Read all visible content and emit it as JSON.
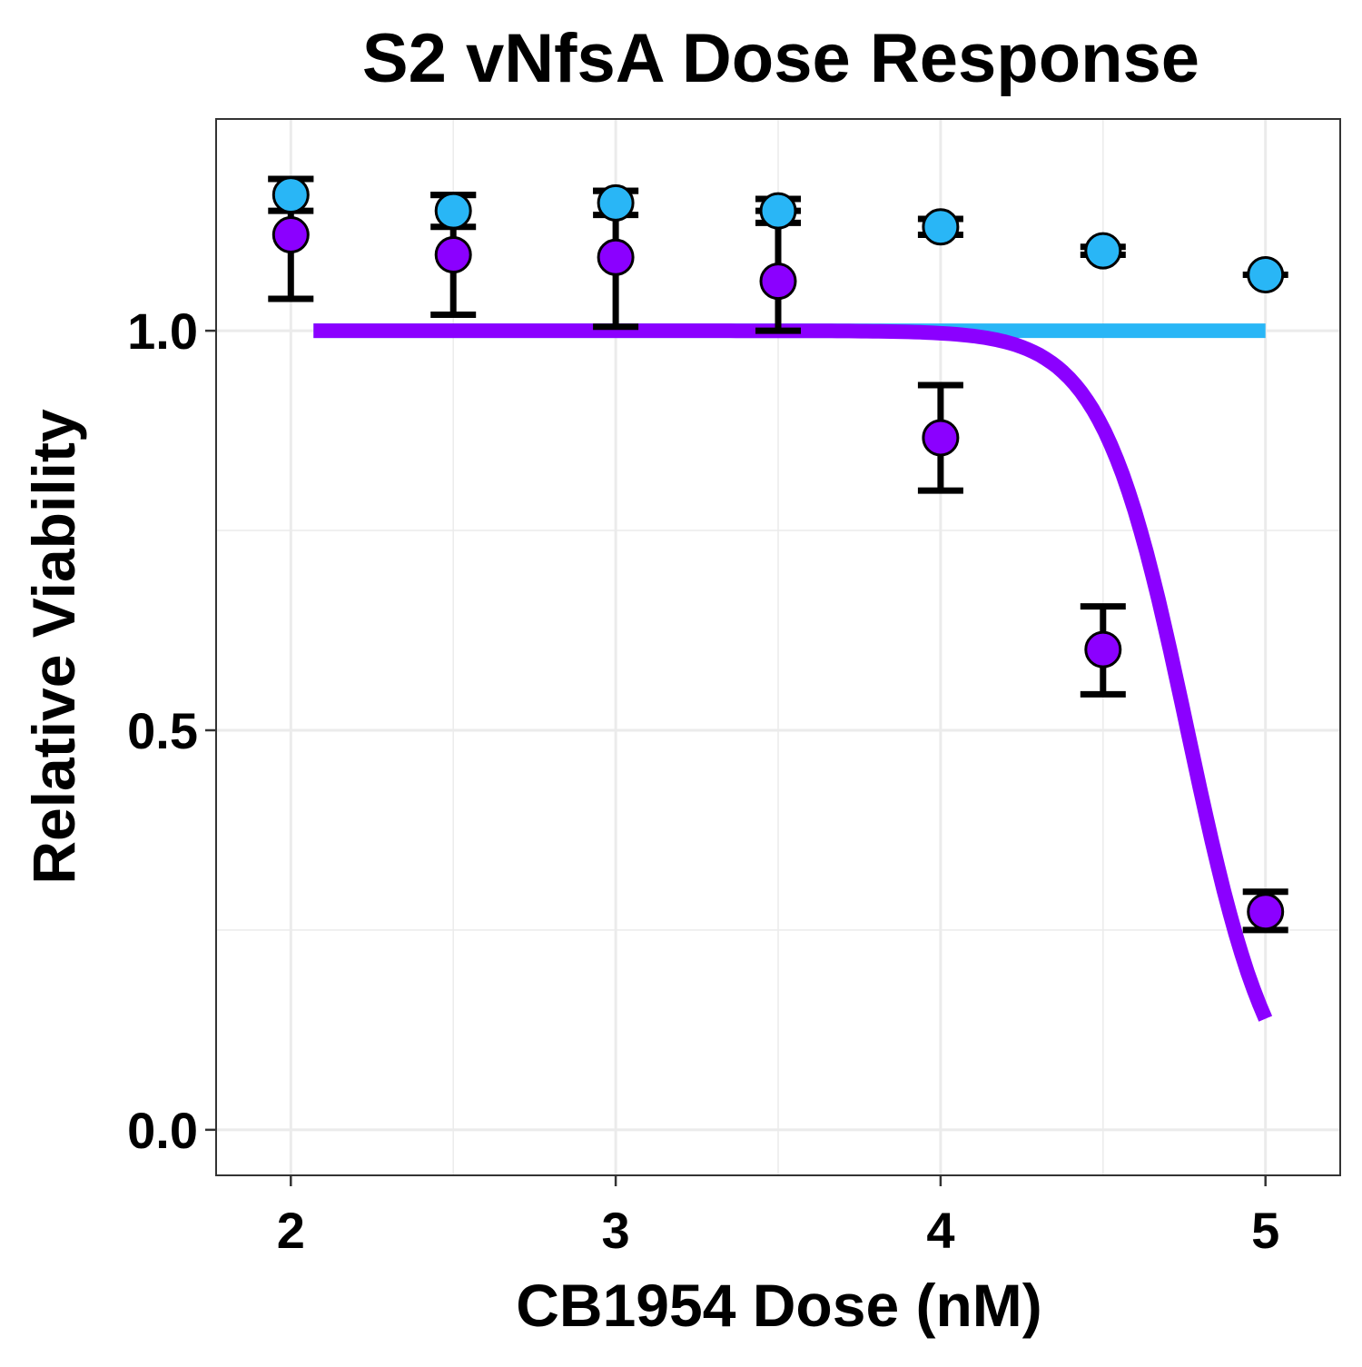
{
  "chart_data": {
    "type": "scatter",
    "title": "S2 vNfsA Dose Response",
    "xlabel": "CB1954 Dose (nM)",
    "ylabel": "Relative Viability",
    "xlim": [
      1.77,
      5.23
    ],
    "ylim": [
      -0.057,
      1.265
    ],
    "x_ticks": [
      2,
      3,
      4,
      5
    ],
    "x_tick_labels": [
      "2",
      "3",
      "4",
      "5"
    ],
    "x_minor_ticks": [
      2.5,
      3.5,
      4.5
    ],
    "y_ticks": [
      0.0,
      0.5,
      1.0
    ],
    "y_tick_labels": [
      "0.0",
      "0.5",
      "1.0"
    ],
    "y_minor_ticks": [
      0.25,
      0.75
    ],
    "grid": true,
    "legend": "none",
    "series": [
      {
        "color": "#29B6F6",
        "x": [
          2.0,
          2.5,
          3.0,
          3.5,
          4.0,
          4.5,
          5.0
        ],
        "y": [
          1.17,
          1.15,
          1.16,
          1.15,
          1.13,
          1.1,
          1.07
        ],
        "err_low": [
          1.15,
          1.13,
          1.145,
          1.135,
          1.12,
          1.095,
          1.07
        ],
        "err_high": [
          1.19,
          1.17,
          1.175,
          1.165,
          1.14,
          1.105,
          1.07
        ],
        "fit": {
          "model": "constant",
          "value": 1.0,
          "x_range": [
            2.07,
            5.0
          ]
        }
      },
      {
        "color": "#8B00FF",
        "x": [
          2.0,
          2.5,
          3.0,
          3.5,
          4.0,
          4.5,
          5.0
        ],
        "y": [
          1.12,
          1.095,
          1.092,
          1.062,
          0.866,
          0.601,
          0.273
        ],
        "err_low": [
          1.04,
          1.02,
          1.005,
          1.0,
          0.8,
          0.545,
          0.25
        ],
        "err_high": [
          1.19,
          1.17,
          1.175,
          1.15,
          0.932,
          0.655,
          0.298
        ],
        "fit": {
          "model": "log-logistic",
          "top": 1.0,
          "bottom": 0.0,
          "ec50": 4.76,
          "hill": 3.3,
          "x_range": [
            2.07,
            5.0
          ]
        }
      }
    ]
  }
}
